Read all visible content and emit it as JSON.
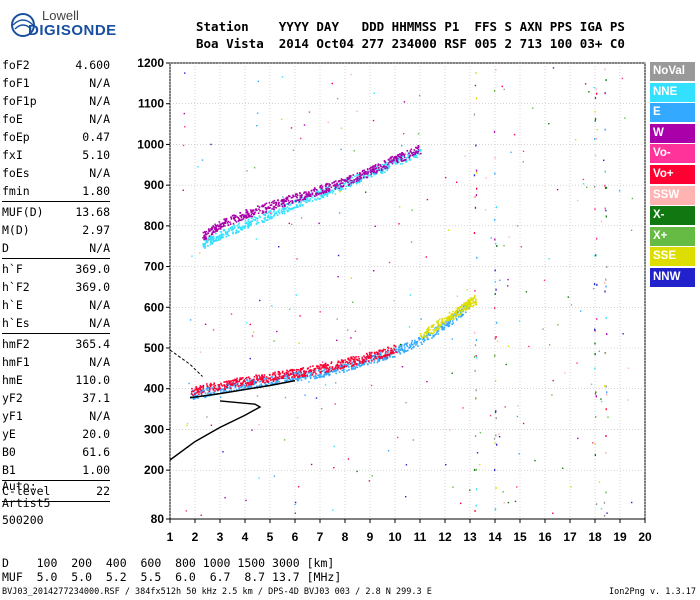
{
  "logo": {
    "line1": "Lowell",
    "line2": "DIGISONDE"
  },
  "header": {
    "line1": "Station    YYYY DAY   DDD HHMMSS P1  FFS S AXN PPS IGA PS",
    "line2": "Boa Vista  2014 Oct04 277 234000 RSF 005 2 713 100 03+ C0"
  },
  "params": [
    {
      "k": "foF2",
      "v": "4.600"
    },
    {
      "k": "foF1",
      "v": "N/A"
    },
    {
      "k": "foF1p",
      "v": "N/A"
    },
    {
      "k": "foE",
      "v": "N/A"
    },
    {
      "k": "foEp",
      "v": "0.47"
    },
    {
      "k": "fxI",
      "v": "5.10"
    },
    {
      "k": "foEs",
      "v": "N/A"
    },
    {
      "k": "fmin",
      "v": "1.80",
      "sep": true
    },
    {
      "k": "MUF(D)",
      "v": "13.68"
    },
    {
      "k": "M(D)",
      "v": "2.97"
    },
    {
      "k": "D",
      "v": "N/A",
      "sep": true
    },
    {
      "k": "h`F",
      "v": "369.0"
    },
    {
      "k": "h`F2",
      "v": "369.0"
    },
    {
      "k": "h`E",
      "v": "N/A"
    },
    {
      "k": "h`Es",
      "v": "N/A",
      "sep": true
    },
    {
      "k": "hmF2",
      "v": "365.4"
    },
    {
      "k": "hmF1",
      "v": "N/A"
    },
    {
      "k": "hmE",
      "v": "110.0"
    },
    {
      "k": "yF2",
      "v": "37.1"
    },
    {
      "k": "yF1",
      "v": "N/A"
    },
    {
      "k": "yE",
      "v": "20.0"
    },
    {
      "k": "B0",
      "v": "61.6"
    },
    {
      "k": "B1",
      "v": "1.00",
      "sep": true
    },
    {
      "k": "C-level",
      "v": "22",
      "sep": true
    }
  ],
  "auto": {
    "l1": "Auto:",
    "l2": "Artist5",
    "l3": "500200"
  },
  "legend": [
    {
      "label": "NoVal",
      "color": "#999999"
    },
    {
      "label": "NNE",
      "color": "#33e0ff"
    },
    {
      "label": "E",
      "color": "#33aaff"
    },
    {
      "label": "W",
      "color": "#aa00aa"
    },
    {
      "label": "Vo-",
      "color": "#ff3399"
    },
    {
      "label": "Vo+",
      "color": "#ff0033"
    },
    {
      "label": "SSW",
      "color": "#ffb3b3"
    },
    {
      "label": "X-",
      "color": "#117711"
    },
    {
      "label": "X+",
      "color": "#66bb44"
    },
    {
      "label": "SSE",
      "color": "#dddd00"
    },
    {
      "label": "NNW",
      "color": "#2222cc"
    }
  ],
  "bottom": {
    "line1": "D    100  200  400  600  800 1000 1500 3000 [km]",
    "line2": "MUF  5.0  5.0  5.2  5.5  6.0  6.7  8.7 13.7 [MHz]"
  },
  "footer": "BVJ03_2014277234000.RSF / 384fx512h 50 kHz 2.5 km / DPS-4D BVJ03 003 / 2.8 N 299.3 E",
  "version": "Ion2Png v. 1.3.17",
  "chart_data": {
    "type": "scatter",
    "title": "",
    "xlabel": "",
    "ylabel": "",
    "xlim": [
      1,
      20
    ],
    "ylim": [
      80,
      1200
    ],
    "xticks": [
      1,
      2,
      3,
      4,
      5,
      6,
      7,
      8,
      9,
      10,
      11,
      12,
      13,
      14,
      15,
      16,
      17,
      18,
      19,
      20
    ],
    "yticks": [
      80,
      200,
      300,
      400,
      500,
      600,
      700,
      800,
      900,
      1000,
      1100,
      1200
    ],
    "grid": true,
    "series": [
      {
        "name": "NNE",
        "trace": [
          [
            2.3,
            755
          ],
          [
            3,
            780
          ],
          [
            4,
            805
          ],
          [
            5,
            830
          ],
          [
            6,
            855
          ],
          [
            7,
            880
          ],
          [
            8,
            905
          ],
          [
            9,
            930
          ],
          [
            10,
            958
          ],
          [
            11,
            985
          ]
        ]
      },
      {
        "name": "W",
        "trace": [
          [
            2.3,
            775
          ],
          [
            3,
            805
          ],
          [
            4,
            830
          ],
          [
            5,
            850
          ],
          [
            6,
            870
          ],
          [
            7,
            890
          ],
          [
            8,
            910
          ],
          [
            9,
            935
          ],
          [
            10,
            965
          ],
          [
            11,
            990
          ]
        ]
      },
      {
        "name": "E",
        "trace": [
          [
            1.8,
            385
          ],
          [
            3,
            400
          ],
          [
            4,
            412
          ],
          [
            5,
            420
          ],
          [
            6,
            432
          ],
          [
            7,
            440
          ],
          [
            8,
            455
          ],
          [
            9,
            472
          ],
          [
            10,
            492
          ],
          [
            11,
            520
          ],
          [
            12,
            558
          ],
          [
            13,
            610
          ]
        ]
      },
      {
        "name": "Vo+",
        "trace": [
          [
            1.8,
            395
          ],
          [
            3,
            410
          ],
          [
            4,
            420
          ],
          [
            5,
            430
          ],
          [
            6,
            440
          ],
          [
            7,
            450
          ],
          [
            8,
            465
          ],
          [
            9,
            480
          ],
          [
            10,
            498
          ]
        ]
      },
      {
        "name": "SSE",
        "trace": [
          [
            11,
            530
          ],
          [
            12,
            570
          ],
          [
            12.8,
            605
          ],
          [
            13.2,
            620
          ]
        ]
      }
    ],
    "profile": [
      [
        1,
        225
      ],
      [
        2,
        270
      ],
      [
        3,
        305
      ],
      [
        4,
        335
      ],
      [
        4.6,
        355
      ],
      [
        4.4,
        362
      ],
      [
        3,
        370
      ]
    ]
  }
}
